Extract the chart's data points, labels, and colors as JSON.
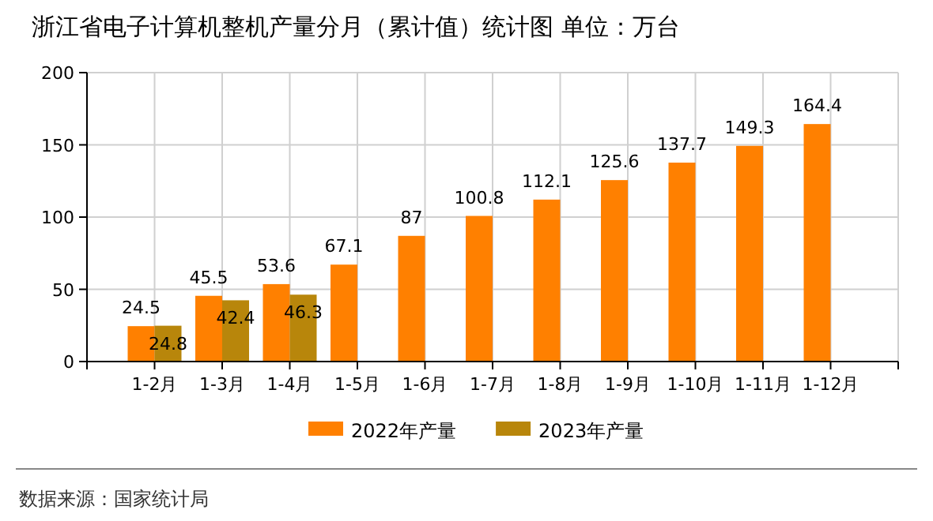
{
  "chart_data": {
    "type": "bar",
    "title": "浙江省电子计算机整机产量分月（累计值）统计图 单位：万台",
    "categories": [
      "1-2月",
      "1-3月",
      "1-4月",
      "1-5月",
      "1-6月",
      "1-7月",
      "1-8月",
      "1-9月",
      "1-10月",
      "1-11月",
      "1-12月"
    ],
    "series": [
      {
        "name": "2022年产量",
        "color": "#ff8000",
        "values": [
          24.5,
          45.5,
          53.6,
          67.1,
          87,
          100.8,
          112.1,
          125.6,
          137.7,
          149.3,
          164.4
        ]
      },
      {
        "name": "2023年产量",
        "color": "#b8860b",
        "values": [
          24.8,
          42.4,
          46.3,
          null,
          null,
          null,
          null,
          null,
          null,
          null,
          null
        ]
      }
    ],
    "ylim": [
      0,
      200
    ],
    "yticks": [
      0,
      50,
      100,
      150,
      200
    ],
    "grid": true,
    "legend": "bottom",
    "data_labels": true,
    "annotations": [
      "数据来源：国家统计局"
    ]
  }
}
